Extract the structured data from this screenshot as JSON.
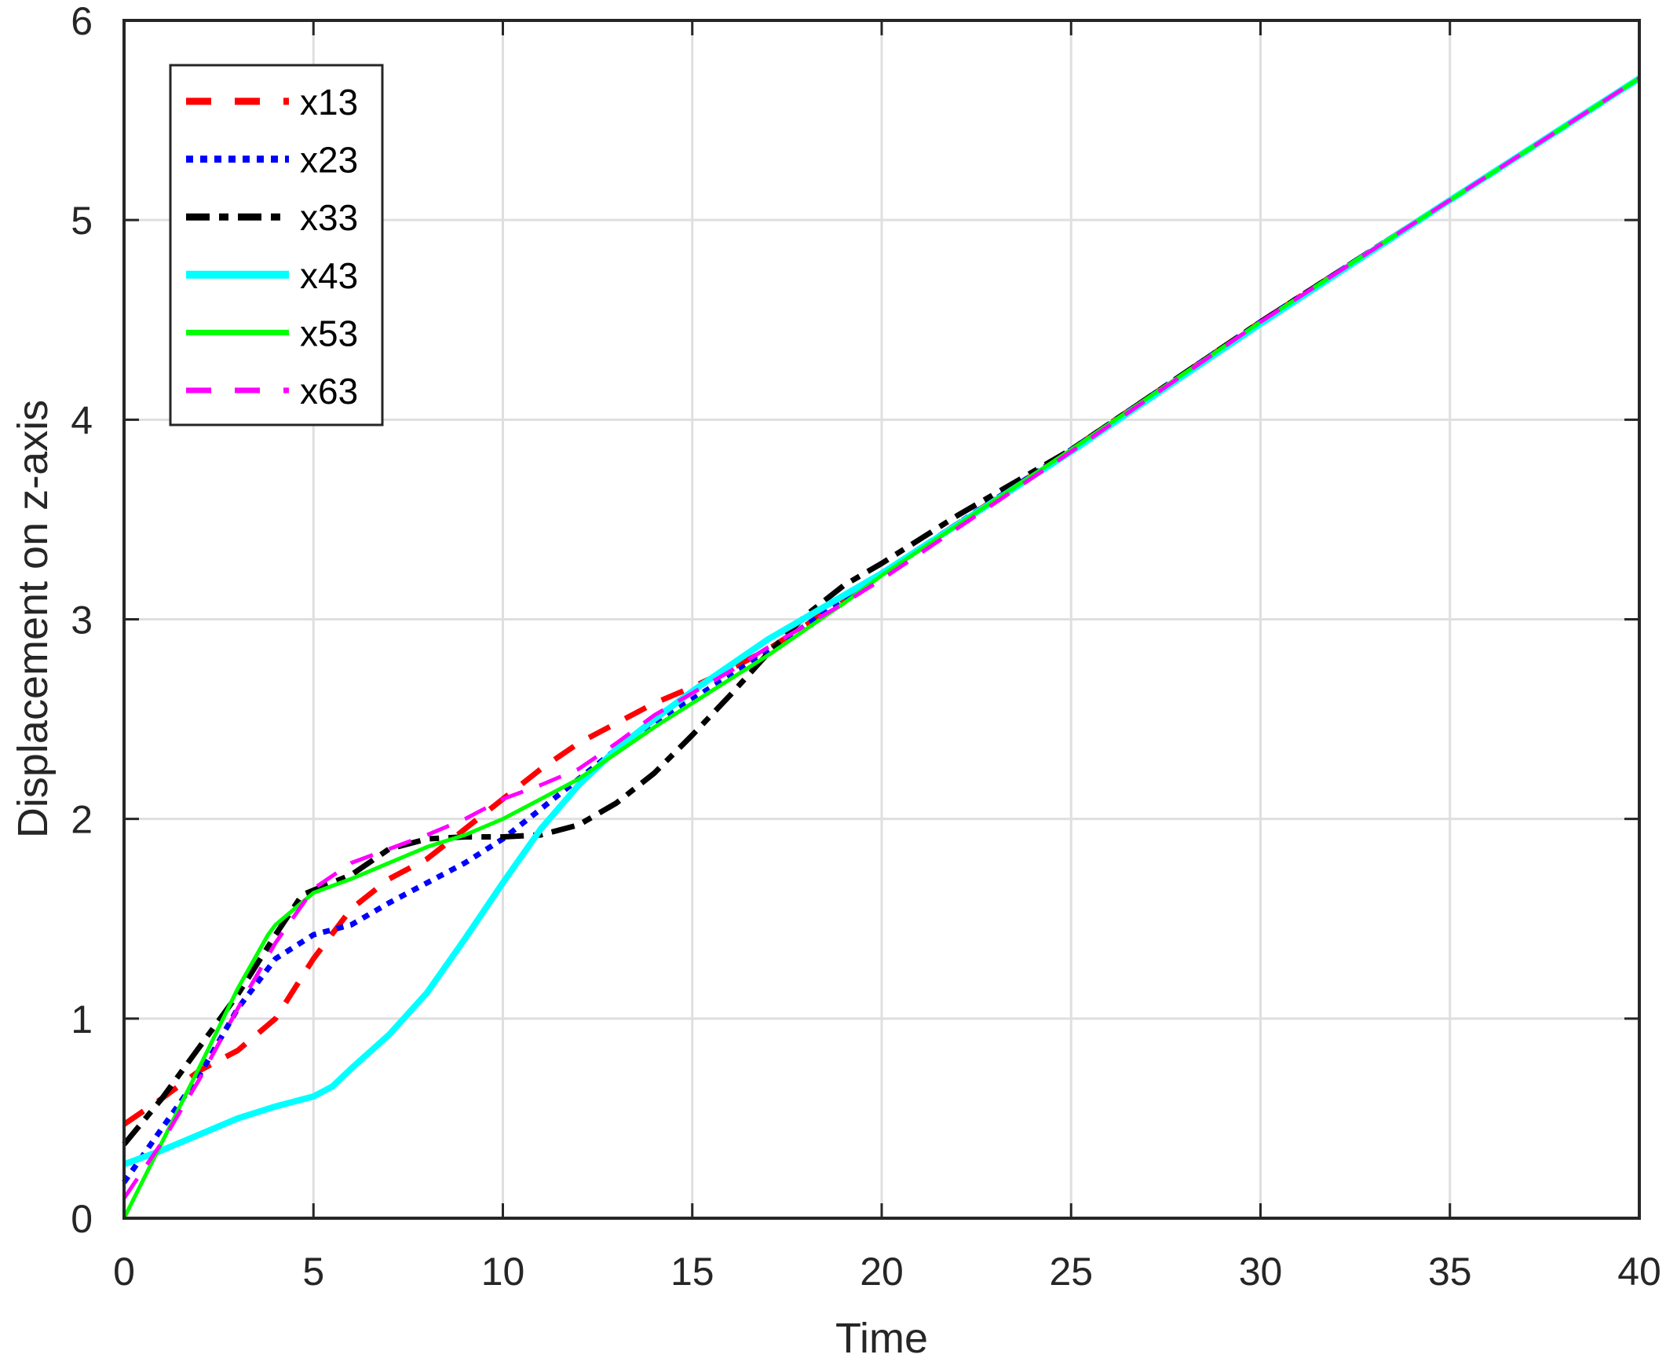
{
  "chart_data": {
    "type": "line",
    "title": "",
    "xlabel": "Time",
    "ylabel": "Displacement on z-axis",
    "xlim": [
      0,
      40
    ],
    "ylim": [
      0,
      6
    ],
    "xticks": [
      0,
      5,
      10,
      15,
      20,
      25,
      30,
      35,
      40
    ],
    "yticks": [
      0,
      1,
      2,
      3,
      4,
      5,
      6
    ],
    "grid": true,
    "legend_position": "upper left",
    "series": [
      {
        "name": "x13",
        "color": "#ff0000",
        "style": "dashed",
        "x": [
          0,
          1,
          2,
          3,
          4,
          5,
          6,
          7,
          8,
          9,
          10,
          11,
          12,
          13,
          14,
          15,
          16,
          17,
          18,
          19,
          20,
          25,
          30,
          35,
          40
        ],
        "y": [
          0.47,
          0.6,
          0.74,
          0.84,
          1.0,
          1.3,
          1.55,
          1.7,
          1.8,
          1.95,
          2.1,
          2.25,
          2.38,
          2.48,
          2.58,
          2.66,
          2.75,
          2.85,
          2.97,
          3.1,
          3.23,
          3.85,
          4.49,
          5.1,
          5.71
        ]
      },
      {
        "name": "x23",
        "color": "#0000ff",
        "style": "dotted",
        "x": [
          0,
          1,
          2,
          3,
          4,
          5,
          6,
          7,
          8,
          9,
          10,
          11,
          12,
          13,
          14,
          15,
          16,
          17,
          18,
          19,
          20,
          25,
          30,
          35,
          40
        ],
        "y": [
          0.18,
          0.45,
          0.72,
          1.05,
          1.3,
          1.42,
          1.47,
          1.58,
          1.68,
          1.78,
          1.9,
          2.05,
          2.2,
          2.35,
          2.48,
          2.6,
          2.72,
          2.84,
          2.97,
          3.1,
          3.23,
          3.85,
          4.49,
          5.1,
          5.71
        ]
      },
      {
        "name": "x33",
        "color": "#000000",
        "style": "dashdot",
        "x": [
          0,
          1,
          2,
          3,
          4,
          4.7,
          6,
          7,
          8,
          9,
          10,
          11,
          12,
          13,
          14,
          15,
          16,
          17,
          18,
          19,
          20,
          22,
          25,
          30,
          35,
          40
        ],
        "y": [
          0.37,
          0.6,
          0.86,
          1.12,
          1.42,
          1.62,
          1.72,
          1.85,
          1.9,
          1.91,
          1.91,
          1.92,
          1.97,
          2.08,
          2.23,
          2.42,
          2.62,
          2.83,
          3.02,
          3.17,
          3.28,
          3.52,
          3.85,
          4.49,
          5.1,
          5.71
        ]
      },
      {
        "name": "x43",
        "color": "#00ffff",
        "style": "solid",
        "x": [
          0,
          1,
          2,
          3,
          4,
          5,
          5.5,
          6,
          7,
          8,
          9,
          10,
          11,
          12,
          13,
          14,
          15,
          16,
          17,
          18,
          19,
          20,
          25,
          30,
          35,
          40
        ],
        "y": [
          0.27,
          0.34,
          0.42,
          0.5,
          0.56,
          0.61,
          0.66,
          0.75,
          0.92,
          1.13,
          1.4,
          1.68,
          1.95,
          2.17,
          2.35,
          2.5,
          2.64,
          2.77,
          2.9,
          3.01,
          3.12,
          3.23,
          3.84,
          4.48,
          5.1,
          5.71
        ]
      },
      {
        "name": "x53",
        "color": "#00ff00",
        "style": "solid",
        "x": [
          0,
          1,
          2,
          3,
          3.8,
          4,
          5,
          6,
          7,
          8,
          9,
          10,
          11,
          12,
          13,
          14,
          15,
          16,
          17,
          18,
          19,
          20,
          25,
          30,
          35,
          40
        ],
        "y": [
          0.0,
          0.38,
          0.76,
          1.15,
          1.42,
          1.47,
          1.63,
          1.7,
          1.78,
          1.86,
          1.92,
          2.0,
          2.1,
          2.2,
          2.33,
          2.46,
          2.58,
          2.7,
          2.82,
          2.95,
          3.08,
          3.22,
          3.85,
          4.49,
          5.1,
          5.71
        ]
      },
      {
        "name": "x63",
        "color": "#ff00ff",
        "style": "dashed",
        "x": [
          0,
          1,
          2,
          3,
          4,
          5,
          6,
          7,
          8,
          9,
          10,
          11,
          12,
          13,
          14,
          15,
          16,
          17,
          18,
          19,
          20,
          25,
          30,
          35,
          40
        ],
        "y": [
          0.1,
          0.38,
          0.7,
          1.05,
          1.38,
          1.65,
          1.78,
          1.85,
          1.92,
          2.0,
          2.1,
          2.17,
          2.25,
          2.38,
          2.52,
          2.63,
          2.74,
          2.86,
          2.97,
          3.08,
          3.2,
          3.84,
          4.49,
          5.1,
          5.71
        ]
      }
    ]
  }
}
